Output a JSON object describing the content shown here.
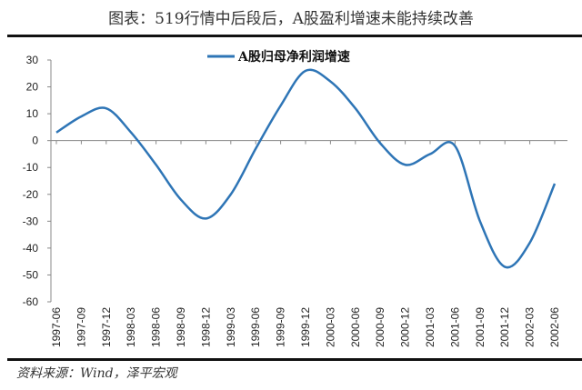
{
  "title": "图表：519行情中后段后，A股盈利增速未能持续改善",
  "source": "资料来源：Wind，泽平宏观",
  "chart_data": {
    "type": "line",
    "title": "图表：519行情中后段后，A股盈利增速未能持续改善",
    "xlabel": "",
    "ylabel": "",
    "ylim": [
      -60,
      30
    ],
    "yticks": [
      30,
      20,
      10,
      0,
      -10,
      -20,
      -30,
      -40,
      -50,
      -60
    ],
    "grid": false,
    "legend": "top-center",
    "categories": [
      "1997-06",
      "1997-09",
      "1997-12",
      "1998-03",
      "1998-06",
      "1998-09",
      "1998-12",
      "1999-03",
      "1999-06",
      "1999-09",
      "1999-12",
      "2000-03",
      "2000-06",
      "2000-09",
      "2000-12",
      "2001-03",
      "2001-06",
      "2001-09",
      "2001-12",
      "2002-03",
      "2002-06"
    ],
    "series": [
      {
        "name": "A股归母净利润增速",
        "color": "#2E75B6",
        "values": [
          3,
          9,
          12,
          3,
          -9,
          -22,
          -29,
          -20,
          -3,
          13,
          26,
          22,
          12,
          -1,
          -9,
          -5,
          -2,
          -30,
          -47,
          -38,
          -16
        ]
      }
    ]
  }
}
